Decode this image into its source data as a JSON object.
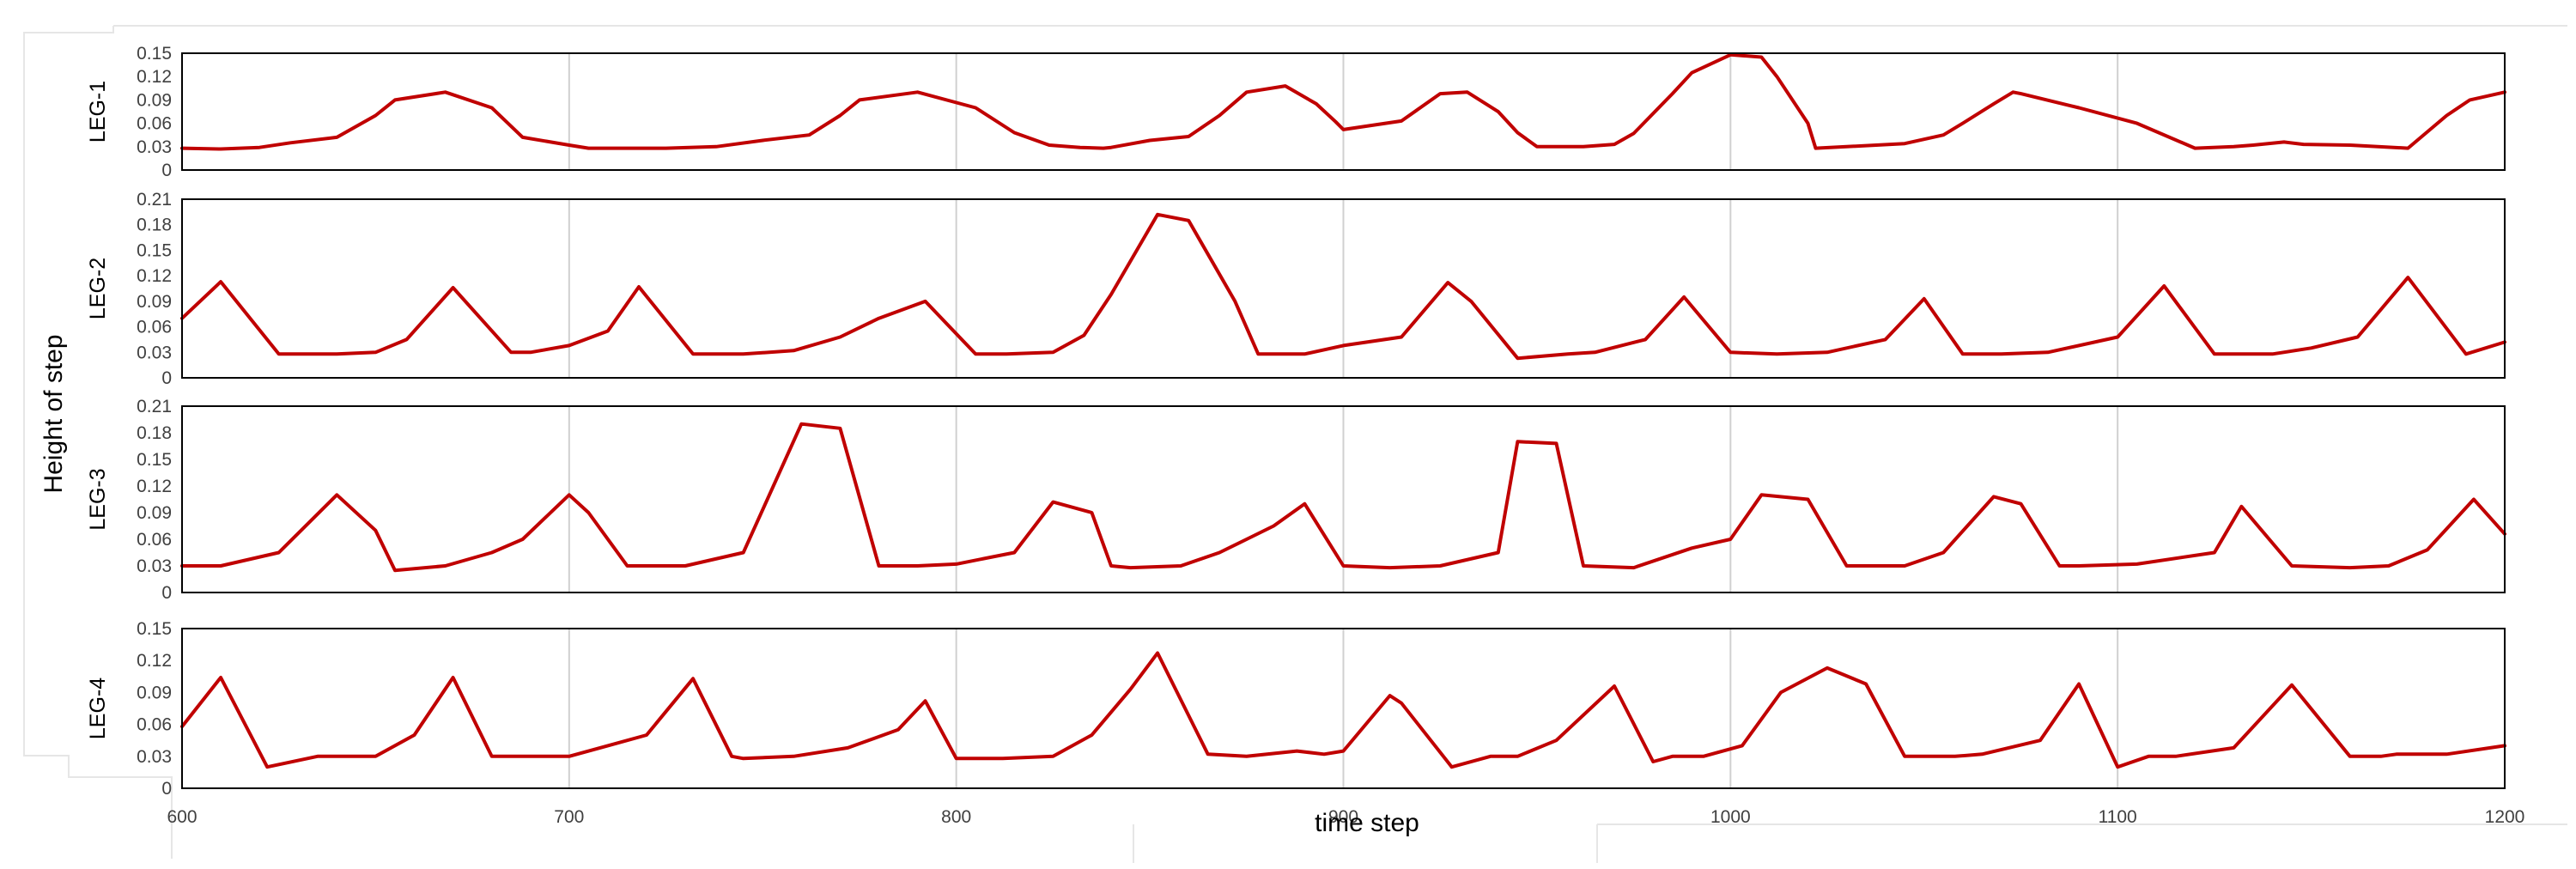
{
  "chart_data": [
    {
      "type": "line",
      "panel_label": "LEG-1",
      "color": "#c00000",
      "x_ticks": [
        600,
        700,
        800,
        900,
        1000,
        1100,
        1200
      ],
      "xlim": [
        600,
        1200
      ],
      "y_ticks": [
        "0",
        "0.03",
        "0.06",
        "0.09",
        "0.12",
        "0.15"
      ],
      "ylim": [
        0,
        0.15
      ],
      "grid": "vertical",
      "series": [
        {
          "x": [
            600,
            610,
            620,
            628,
            640,
            650,
            655,
            668,
            680,
            688,
            700,
            705,
            713,
            725,
            738,
            750,
            762,
            770,
            775,
            790,
            805,
            815,
            824,
            832,
            838,
            840,
            850,
            860,
            868,
            875,
            885,
            893,
            898,
            900,
            915,
            925,
            932,
            940,
            945,
            950,
            957,
            962,
            970,
            975,
            985,
            990,
            1000,
            1008,
            1012,
            1020,
            1022,
            1030,
            1045,
            1055,
            1060,
            1068,
            1073,
            1075,
            1090,
            1105,
            1120,
            1130,
            1135,
            1143,
            1148,
            1160,
            1175,
            1185,
            1191,
            1200
          ],
          "y": [
            0.028,
            0.027,
            0.029,
            0.035,
            0.042,
            0.07,
            0.09,
            0.1,
            0.08,
            0.042,
            0.032,
            0.028,
            0.028,
            0.028,
            0.03,
            0.038,
            0.045,
            0.07,
            0.09,
            0.1,
            0.08,
            0.048,
            0.032,
            0.029,
            0.028,
            0.029,
            0.038,
            0.043,
            0.07,
            0.1,
            0.108,
            0.085,
            0.062,
            0.052,
            0.063,
            0.098,
            0.1,
            0.075,
            0.048,
            0.03,
            0.03,
            0.03,
            0.033,
            0.047,
            0.098,
            0.125,
            0.148,
            0.145,
            0.12,
            0.06,
            0.028,
            0.03,
            0.034,
            0.045,
            0.06,
            0.085,
            0.1,
            0.098,
            0.08,
            0.06,
            0.028,
            0.03,
            0.032,
            0.036,
            0.033,
            0.032,
            0.028,
            0.07,
            0.09,
            0.1
          ]
        }
      ]
    },
    {
      "type": "line",
      "panel_label": "LEG-2",
      "color": "#c00000",
      "x_ticks": [
        600,
        700,
        800,
        900,
        1000,
        1100,
        1200
      ],
      "xlim": [
        600,
        1200
      ],
      "y_ticks": [
        "0",
        "0.03",
        "0.06",
        "0.09",
        "0.12",
        "0.15",
        "0.18",
        "0.21"
      ],
      "ylim": [
        0,
        0.21
      ],
      "grid": "vertical",
      "series": [
        {
          "x": [
            600,
            610,
            625,
            640,
            650,
            658,
            670,
            685,
            690,
            700,
            710,
            718,
            732,
            745,
            758,
            770,
            780,
            792,
            805,
            813,
            825,
            833,
            840,
            852,
            860,
            872,
            878,
            890,
            900,
            915,
            927,
            933,
            945,
            958,
            965,
            978,
            988,
            1000,
            1012,
            1025,
            1040,
            1050,
            1060,
            1070,
            1082,
            1100,
            1112,
            1125,
            1140,
            1150,
            1162,
            1175,
            1190,
            1200
          ],
          "y": [
            0.07,
            0.113,
            0.028,
            0.028,
            0.03,
            0.045,
            0.106,
            0.03,
            0.03,
            0.038,
            0.055,
            0.107,
            0.028,
            0.028,
            0.032,
            0.048,
            0.07,
            0.09,
            0.028,
            0.028,
            0.03,
            0.05,
            0.098,
            0.192,
            0.185,
            0.09,
            0.028,
            0.028,
            0.038,
            0.048,
            0.112,
            0.09,
            0.023,
            0.028,
            0.03,
            0.045,
            0.095,
            0.03,
            0.028,
            0.03,
            0.045,
            0.093,
            0.028,
            0.028,
            0.03,
            0.048,
            0.108,
            0.028,
            0.028,
            0.035,
            0.048,
            0.118,
            0.028,
            0.042
          ]
        }
      ]
    },
    {
      "type": "line",
      "panel_label": "LEG-3",
      "color": "#c00000",
      "x_ticks": [
        600,
        700,
        800,
        900,
        1000,
        1100,
        1200
      ],
      "xlim": [
        600,
        1200
      ],
      "y_ticks": [
        "0",
        "0.03",
        "0.06",
        "0.09",
        "0.12",
        "0.15",
        "0.18",
        "0.21"
      ],
      "ylim": [
        0,
        0.21
      ],
      "grid": "vertical",
      "series": [
        {
          "x": [
            600,
            610,
            625,
            640,
            650,
            655,
            668,
            680,
            688,
            700,
            705,
            715,
            730,
            745,
            760,
            770,
            780,
            790,
            800,
            815,
            825,
            835,
            840,
            845,
            858,
            868,
            875,
            882,
            890,
            900,
            912,
            925,
            940,
            945,
            955,
            962,
            975,
            990,
            1000,
            1008,
            1020,
            1030,
            1045,
            1055,
            1068,
            1075,
            1085,
            1090,
            1105,
            1125,
            1132,
            1145,
            1160,
            1170,
            1180,
            1192,
            1200
          ],
          "y": [
            0.03,
            0.03,
            0.045,
            0.11,
            0.07,
            0.025,
            0.03,
            0.045,
            0.06,
            0.11,
            0.09,
            0.03,
            0.03,
            0.045,
            0.19,
            0.185,
            0.03,
            0.03,
            0.032,
            0.045,
            0.102,
            0.09,
            0.03,
            0.028,
            0.03,
            0.045,
            0.06,
            0.075,
            0.1,
            0.03,
            0.028,
            0.03,
            0.045,
            0.17,
            0.168,
            0.03,
            0.028,
            0.05,
            0.06,
            0.11,
            0.105,
            0.03,
            0.03,
            0.045,
            0.108,
            0.1,
            0.03,
            0.03,
            0.032,
            0.045,
            0.097,
            0.03,
            0.028,
            0.03,
            0.048,
            0.105,
            0.066
          ]
        }
      ]
    },
    {
      "type": "line",
      "panel_label": "LEG-4",
      "color": "#c00000",
      "x_ticks": [
        600,
        700,
        800,
        900,
        1000,
        1100,
        1200
      ],
      "xlim": [
        600,
        1200
      ],
      "y_ticks": [
        "0",
        "0.03",
        "0.06",
        "0.09",
        "0.12",
        "0.15"
      ],
      "ylim": [
        0,
        0.15
      ],
      "grid": "vertical",
      "series": [
        {
          "x": [
            600,
            610,
            622,
            635,
            650,
            660,
            670,
            680,
            685,
            700,
            710,
            720,
            732,
            742,
            745,
            758,
            772,
            785,
            792,
            800,
            812,
            825,
            835,
            845,
            852,
            865,
            875,
            888,
            895,
            900,
            912,
            915,
            928,
            938,
            945,
            955,
            970,
            980,
            985,
            993,
            1003,
            1013,
            1025,
            1035,
            1045,
            1058,
            1065,
            1080,
            1090,
            1100,
            1108,
            1115,
            1130,
            1145,
            1160,
            1168,
            1172,
            1185,
            1200
          ],
          "y": [
            0.058,
            0.104,
            0.02,
            0.03,
            0.03,
            0.05,
            0.104,
            0.03,
            0.03,
            0.03,
            0.04,
            0.05,
            0.103,
            0.03,
            0.028,
            0.03,
            0.038,
            0.055,
            0.082,
            0.028,
            0.028,
            0.03,
            0.05,
            0.093,
            0.127,
            0.032,
            0.03,
            0.035,
            0.032,
            0.035,
            0.087,
            0.08,
            0.02,
            0.03,
            0.03,
            0.045,
            0.096,
            0.025,
            0.03,
            0.03,
            0.04,
            0.09,
            0.113,
            0.098,
            0.03,
            0.03,
            0.032,
            0.045,
            0.098,
            0.02,
            0.03,
            0.03,
            0.038,
            0.097,
            0.03,
            0.03,
            0.032,
            0.032,
            0.04
          ]
        }
      ]
    }
  ],
  "shared": {
    "ylabel": "Height of step",
    "xlabel": "time step"
  }
}
